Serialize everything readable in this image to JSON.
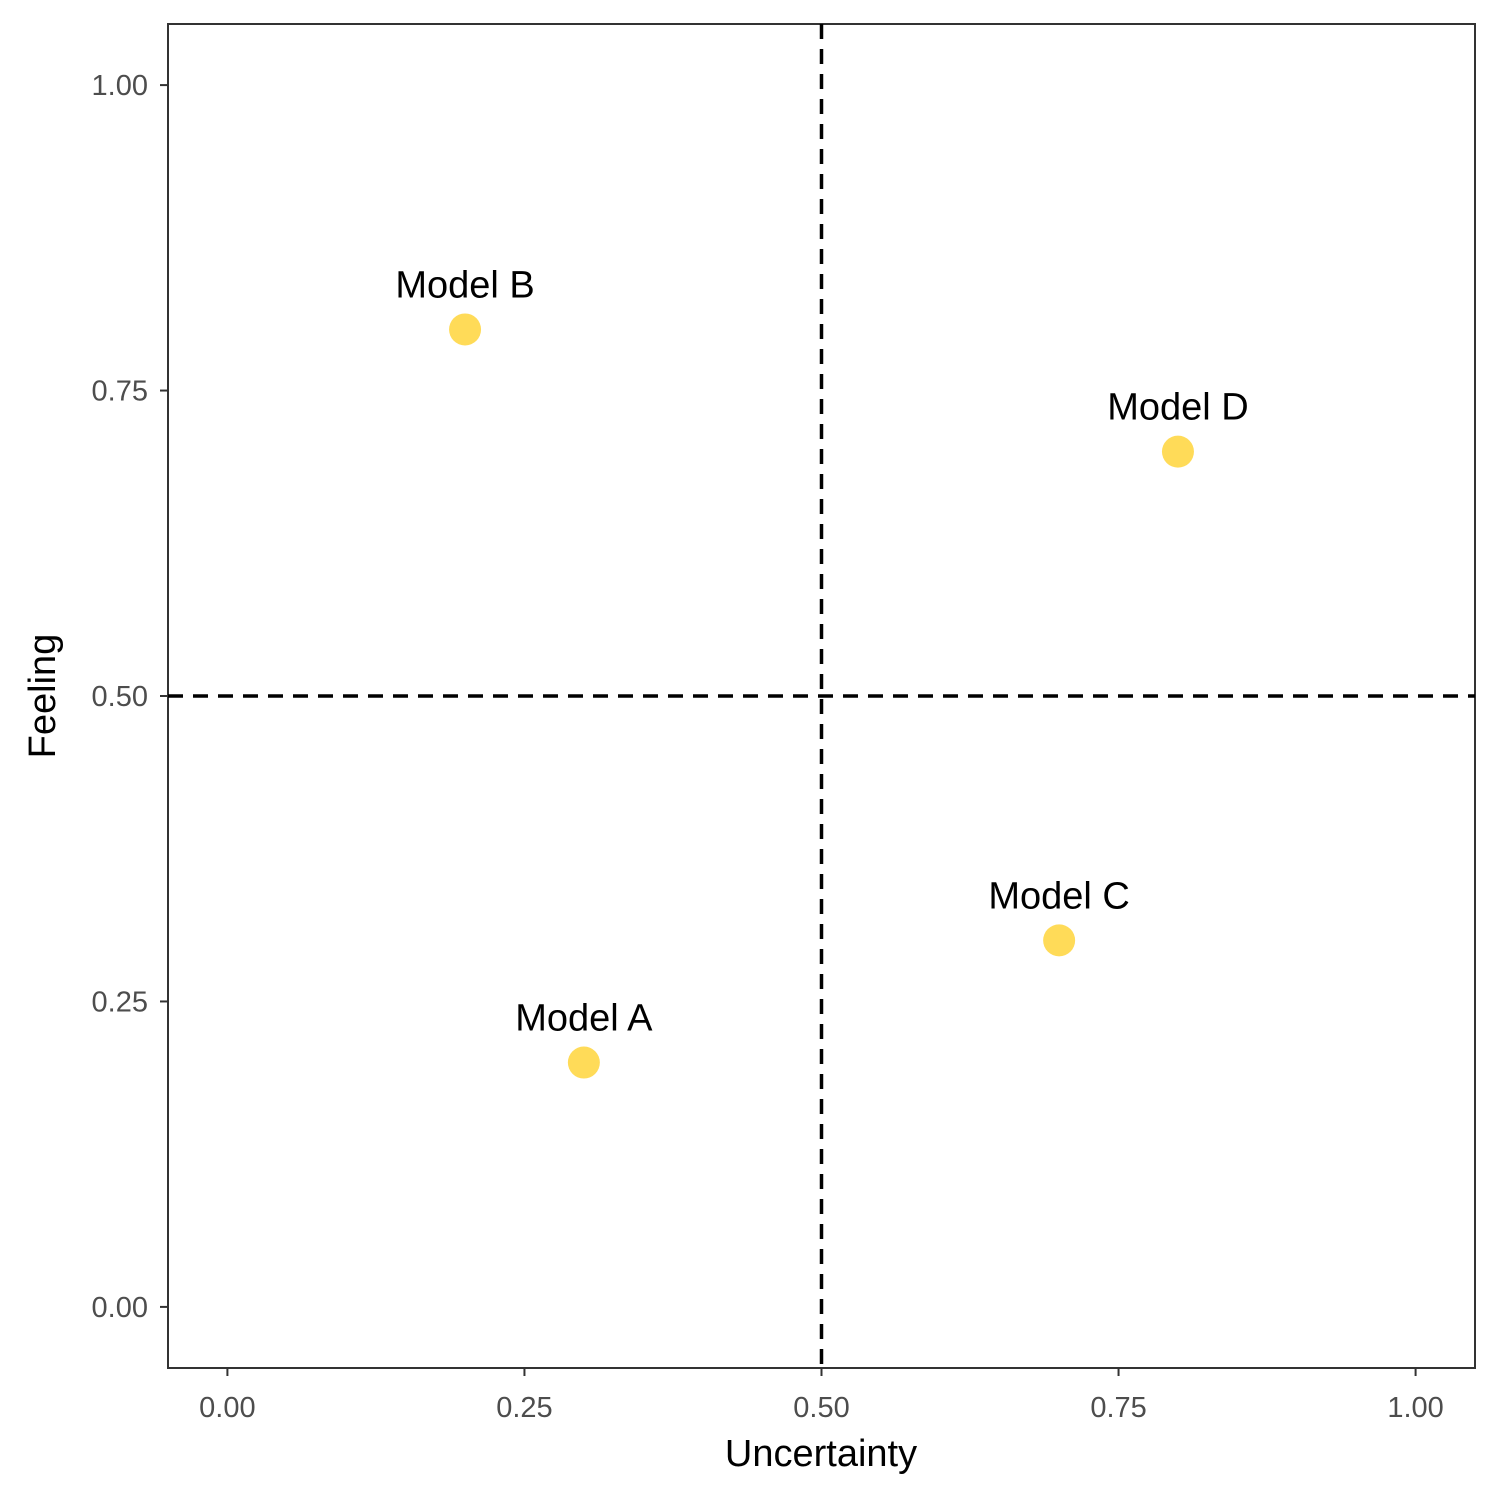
{
  "chart_data": {
    "type": "scatter",
    "title": "",
    "xlabel": "Uncertainty",
    "ylabel": "Feeling",
    "xlim": [
      -0.05,
      1.05
    ],
    "ylim": [
      -0.05,
      1.05
    ],
    "x_ticks": [
      0.0,
      0.25,
      0.5,
      0.75,
      1.0
    ],
    "x_tick_labels": [
      "0.00",
      "0.25",
      "0.50",
      "0.75",
      "1.00"
    ],
    "y_ticks": [
      0.0,
      0.25,
      0.5,
      0.75,
      1.0
    ],
    "y_tick_labels": [
      "0.00",
      "0.25",
      "0.50",
      "0.75",
      "1.00"
    ],
    "grid": false,
    "reference_lines": {
      "vertical_x": 0.5,
      "horizontal_y": 0.5,
      "style": "dashed"
    },
    "point_color": "#FFDB58",
    "points": [
      {
        "label": "Model A",
        "x": 0.3,
        "y": 0.2
      },
      {
        "label": "Model B",
        "x": 0.2,
        "y": 0.8
      },
      {
        "label": "Model C",
        "x": 0.7,
        "y": 0.3
      },
      {
        "label": "Model D",
        "x": 0.8,
        "y": 0.7
      }
    ]
  }
}
